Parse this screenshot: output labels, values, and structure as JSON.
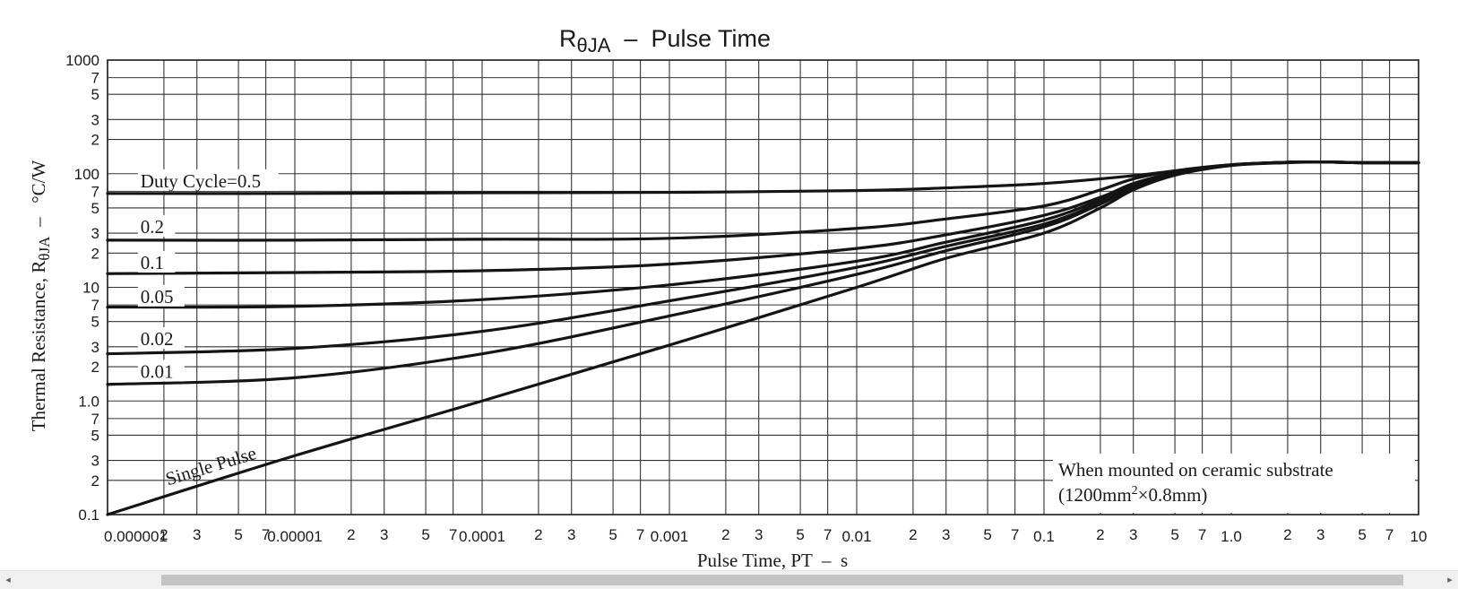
{
  "chart_data": {
    "type": "line",
    "title": "RθJA  –  Pulse Time",
    "title_parts": {
      "r": "R",
      "sub": "θJA",
      "rest": "  –  Pulse Time"
    },
    "xlabel": "Pulse Time, PT  –  s",
    "ylabel_parts": {
      "pre": "Thermal Resistance, R",
      "sub": "θJA",
      "post": "  –   °C/W"
    },
    "x_scale": "log",
    "y_scale": "log",
    "xlim": [
      1e-06,
      10
    ],
    "ylim": [
      0.1,
      1000
    ],
    "grid": true,
    "x_decade_labels": [
      {
        "value": 1e-06,
        "label": "0.000001"
      },
      {
        "value": 1e-05,
        "label": "0.00001"
      },
      {
        "value": 0.0001,
        "label": "0.0001"
      },
      {
        "value": 0.001,
        "label": "0.001"
      },
      {
        "value": 0.01,
        "label": "0.01"
      },
      {
        "value": 0.1,
        "label": "0.1"
      },
      {
        "value": 1,
        "label": "1.0"
      },
      {
        "value": 10,
        "label": "10"
      }
    ],
    "y_decade_labels": [
      {
        "value": 0.1,
        "label": "0.1"
      },
      {
        "value": 1,
        "label": "1.0"
      },
      {
        "value": 10,
        "label": "10"
      },
      {
        "value": 100,
        "label": "100"
      },
      {
        "value": 1000,
        "label": "1000"
      }
    ],
    "minor_multipliers": [
      2,
      3,
      5,
      7
    ],
    "minor_labels": [
      "2",
      "3",
      "5",
      "7"
    ],
    "annotation": {
      "line1": "When mounted on ceramic substrate",
      "line2_pre": "(1200mm",
      "line2_sup": "2",
      "line2_post": "×0.8mm)"
    },
    "series": [
      {
        "name": "Duty Cycle=0.5",
        "label_at": 1.5e-06,
        "label_y": 76,
        "x": [
          1e-06,
          1e-05,
          0.0001,
          0.001,
          0.01,
          0.03,
          0.1,
          0.3,
          0.5,
          1,
          1.5,
          2,
          3,
          5,
          10
        ],
        "y": [
          67,
          67,
          68,
          68.5,
          71,
          75,
          82,
          96,
          106,
          120,
          124,
          126,
          127,
          125,
          125
        ]
      },
      {
        "name": "0.2",
        "label_at": 1.5e-06,
        "label_y": 30,
        "x": [
          1e-06,
          1e-05,
          0.0001,
          0.001,
          0.01,
          0.03,
          0.1,
          0.2,
          0.3,
          0.5,
          1,
          2,
          3,
          5,
          10
        ],
        "y": [
          26,
          26,
          26.5,
          27,
          33,
          40,
          52,
          72,
          90,
          106,
          120,
          126,
          127,
          125,
          125
        ]
      },
      {
        "name": "0.1",
        "label_at": 1.5e-06,
        "label_y": 14.5,
        "x": [
          1e-06,
          1e-05,
          0.0001,
          0.001,
          0.01,
          0.03,
          0.1,
          0.2,
          0.3,
          0.5,
          1,
          2,
          3,
          5,
          10
        ],
        "y": [
          13.2,
          13.5,
          14,
          16,
          22,
          29,
          43,
          62,
          82,
          102,
          119,
          126,
          127,
          125,
          125
        ]
      },
      {
        "name": "0.05",
        "label_at": 1.5e-06,
        "label_y": 7.3,
        "x": [
          1e-06,
          1e-05,
          0.0001,
          0.001,
          0.01,
          0.03,
          0.1,
          0.2,
          0.3,
          0.5,
          1,
          2,
          3,
          5,
          10
        ],
        "y": [
          6.7,
          6.8,
          7.8,
          10.5,
          17,
          25,
          39,
          59,
          79,
          101,
          119,
          126,
          127,
          125,
          125
        ]
      },
      {
        "name": "0.02",
        "label_at": 1.5e-06,
        "label_y": 3.1,
        "x": [
          1e-06,
          1e-05,
          0.0001,
          0.001,
          0.01,
          0.03,
          0.1,
          0.2,
          0.3,
          0.5,
          1,
          2,
          3,
          5,
          10
        ],
        "y": [
          2.6,
          2.9,
          4.1,
          7.6,
          15,
          23,
          36,
          56,
          77,
          100,
          119,
          126,
          127,
          125,
          125
        ]
      },
      {
        "name": "0.01",
        "label_at": 1.5e-06,
        "label_y": 1.6,
        "x": [
          1e-06,
          1e-05,
          0.0001,
          0.001,
          0.01,
          0.03,
          0.1,
          0.2,
          0.3,
          0.5,
          1,
          2,
          3,
          5,
          10
        ],
        "y": [
          1.4,
          1.6,
          2.6,
          5.6,
          13,
          21,
          34,
          54,
          75,
          99,
          119,
          126,
          127,
          125,
          125
        ]
      },
      {
        "name": "Single Pulse",
        "label_at": 2.1e-06,
        "label_y": 0.18,
        "x": [
          1e-06,
          1e-05,
          0.0001,
          0.001,
          0.01,
          0.03,
          0.1,
          0.2,
          0.3,
          0.5,
          1,
          2,
          3,
          5,
          10
        ],
        "y": [
          0.1,
          0.33,
          1.0,
          3.1,
          10,
          18,
          30,
          50,
          72,
          97,
          118,
          125,
          127,
          125,
          125
        ]
      }
    ]
  },
  "scrollbar": {
    "left_arrow": "◂",
    "right_arrow": "▸"
  }
}
